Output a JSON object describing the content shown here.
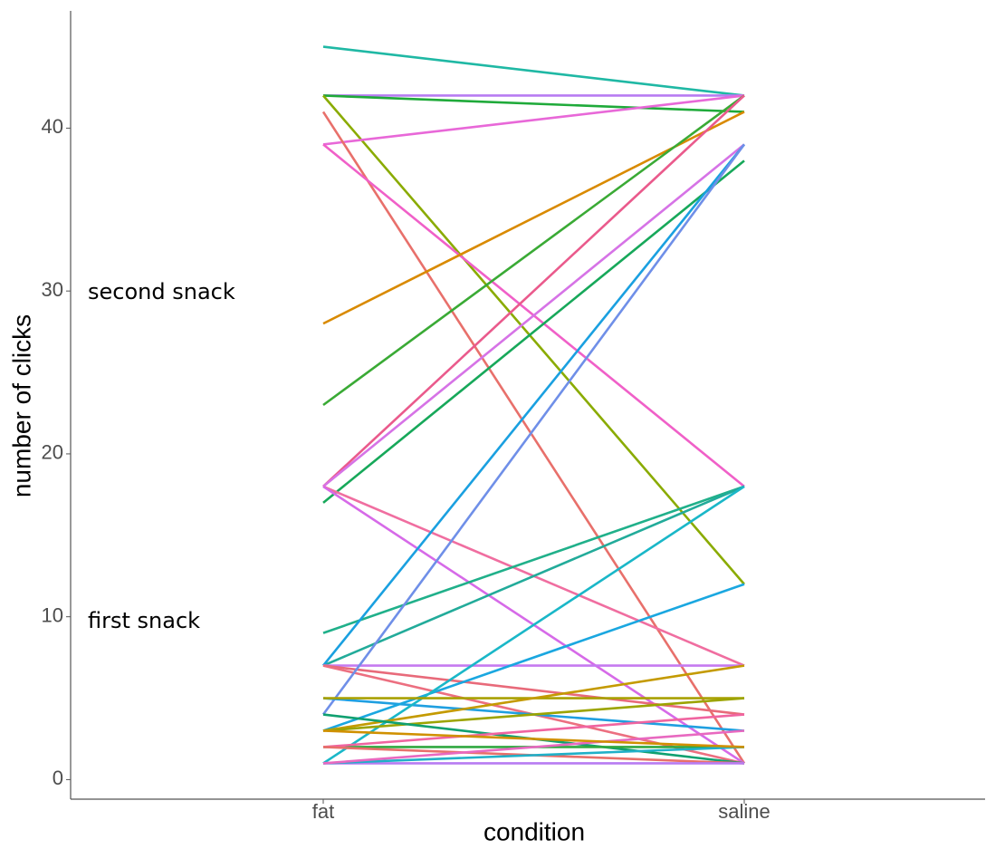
{
  "chart_data": {
    "type": "line",
    "x_label": "condition",
    "y_label": "number of clicks",
    "annotations": [
      "second snack",
      "first snack"
    ],
    "categories": [
      "fat",
      "saline"
    ],
    "ylim": [
      -1.2,
      47.2
    ],
    "yticks": [
      0,
      10,
      20,
      30,
      40
    ],
    "grid": false,
    "series": [
      {
        "color": "#1fb8a4",
        "values": [
          45,
          42
        ]
      },
      {
        "color": "#b77cf2",
        "values": [
          42,
          42
        ]
      },
      {
        "color": "#1faa3a",
        "values": [
          42,
          41
        ]
      },
      {
        "color": "#8aab00",
        "values": [
          42,
          12
        ]
      },
      {
        "color": "#e868d8",
        "values": [
          39,
          42
        ]
      },
      {
        "color": "#e8706b",
        "values": [
          41,
          1
        ]
      },
      {
        "color": "#f060c8",
        "values": [
          39,
          18
        ]
      },
      {
        "color": "#d98a00",
        "values": [
          28,
          41
        ]
      },
      {
        "color": "#3aaa35",
        "values": [
          23,
          42
        ]
      },
      {
        "color": "#17a85a",
        "values": [
          17,
          38
        ]
      },
      {
        "color": "#ea5a8c",
        "values": [
          18,
          42
        ]
      },
      {
        "color": "#d673e6",
        "values": [
          18,
          39
        ]
      },
      {
        "color": "#f06ea0",
        "values": [
          18,
          7
        ]
      },
      {
        "color": "#d66ae8",
        "values": [
          18,
          1
        ]
      },
      {
        "color": "#20b08a",
        "values": [
          9,
          18
        ]
      },
      {
        "color": "#22ab9a",
        "values": [
          7,
          18
        ]
      },
      {
        "color": "#1aa0e0",
        "values": [
          7,
          39
        ]
      },
      {
        "color": "#c57af0",
        "values": [
          7,
          7
        ]
      },
      {
        "color": "#e86a7a",
        "values": [
          7,
          4
        ]
      },
      {
        "color": "#ec6f80",
        "values": [
          7,
          1
        ]
      },
      {
        "color": "#6f8fe8",
        "values": [
          4,
          39
        ]
      },
      {
        "color": "#1f9fe0",
        "values": [
          5,
          3
        ]
      },
      {
        "color": "#1aa7e0",
        "values": [
          3,
          12
        ]
      },
      {
        "color": "#1ab7c8",
        "values": [
          1,
          18
        ]
      },
      {
        "color": "#a8a000",
        "values": [
          5,
          5
        ]
      },
      {
        "color": "#c49a00",
        "values": [
          3,
          7
        ]
      },
      {
        "color": "#9ca400",
        "values": [
          3,
          5
        ]
      },
      {
        "color": "#10a070",
        "values": [
          4,
          1
        ]
      },
      {
        "color": "#30a840",
        "values": [
          2,
          2
        ]
      },
      {
        "color": "#f064a0",
        "values": [
          2,
          4
        ]
      },
      {
        "color": "#e8706b",
        "values": [
          2,
          1
        ]
      },
      {
        "color": "#b77cf2",
        "values": [
          1,
          1
        ]
      },
      {
        "color": "#20b0c8",
        "values": [
          1,
          2
        ]
      },
      {
        "color": "#e869c0",
        "values": [
          1,
          3
        ]
      },
      {
        "color": "#d09000",
        "values": [
          3,
          2
        ]
      }
    ]
  }
}
